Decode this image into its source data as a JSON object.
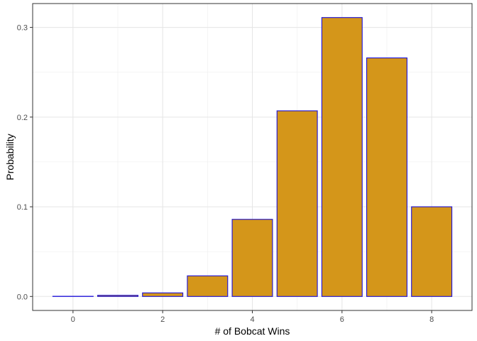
{
  "chart_data": {
    "type": "bar",
    "x": [
      0,
      1,
      2,
      3,
      4,
      5,
      6,
      7,
      8
    ],
    "values": [
      0.0002,
      0.0013,
      0.004,
      0.023,
      0.086,
      0.207,
      0.311,
      0.266,
      0.1
    ],
    "xlabel": "# of Bobcat Wins",
    "ylabel": "Probability",
    "xlim": [
      -0.9,
      8.9
    ],
    "ylim": [
      -0.0156,
      0.3266
    ],
    "x_ticks": [
      0,
      2,
      4,
      6,
      8
    ],
    "y_ticks": [
      0.0,
      0.1,
      0.2,
      0.3
    ],
    "y_tick_labels": [
      "0.0",
      "0.1",
      "0.2",
      "0.3"
    ],
    "bar_fill": "#D4961A",
    "bar_outline": "#1B0FD9",
    "grid": true
  }
}
